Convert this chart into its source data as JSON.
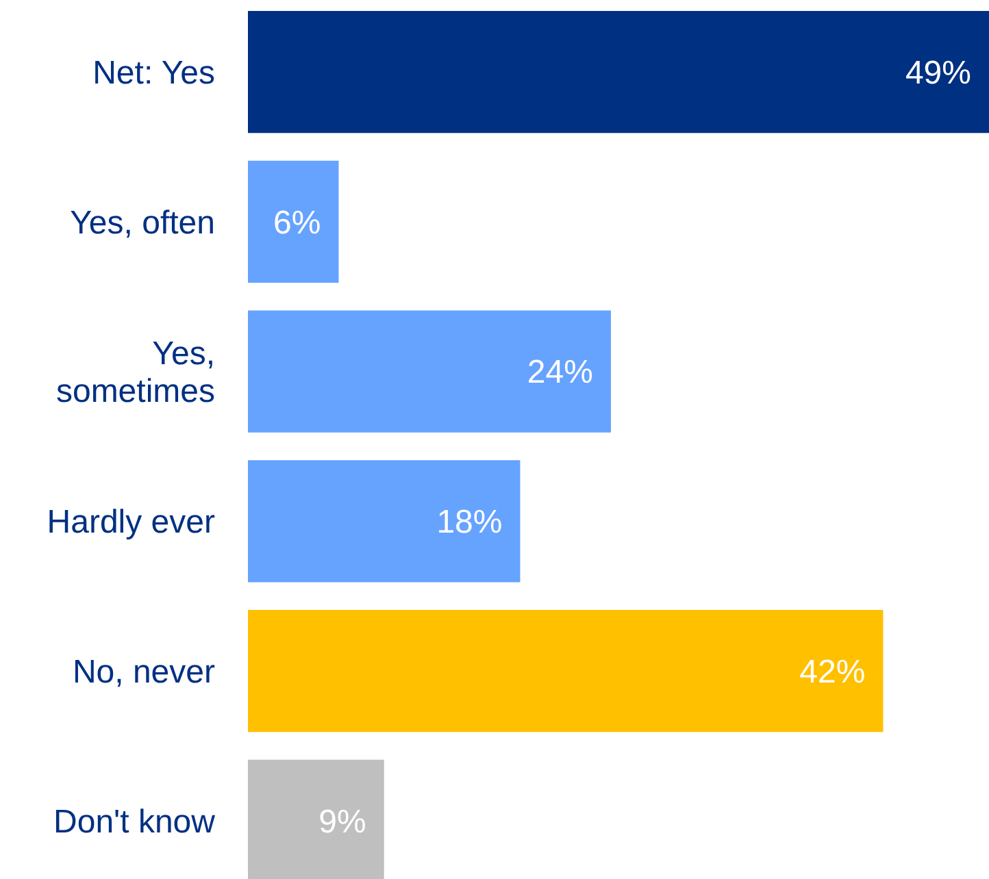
{
  "chart_data": {
    "type": "bar",
    "orientation": "horizontal",
    "categories": [
      "Net: Yes",
      "Yes, often",
      "Yes, sometimes",
      "Hardly ever",
      "No, never",
      "Don't know"
    ],
    "values": [
      49,
      6,
      24,
      18,
      42,
      9
    ],
    "value_labels": [
      "49%",
      "6%",
      "24%",
      "18%",
      "42%",
      "9%"
    ],
    "colors": [
      "#003082",
      "#66a3ff",
      "#66a3ff",
      "#66a3ff",
      "#ffc000",
      "#bfbfbf"
    ],
    "tick_labels": "y"
  }
}
